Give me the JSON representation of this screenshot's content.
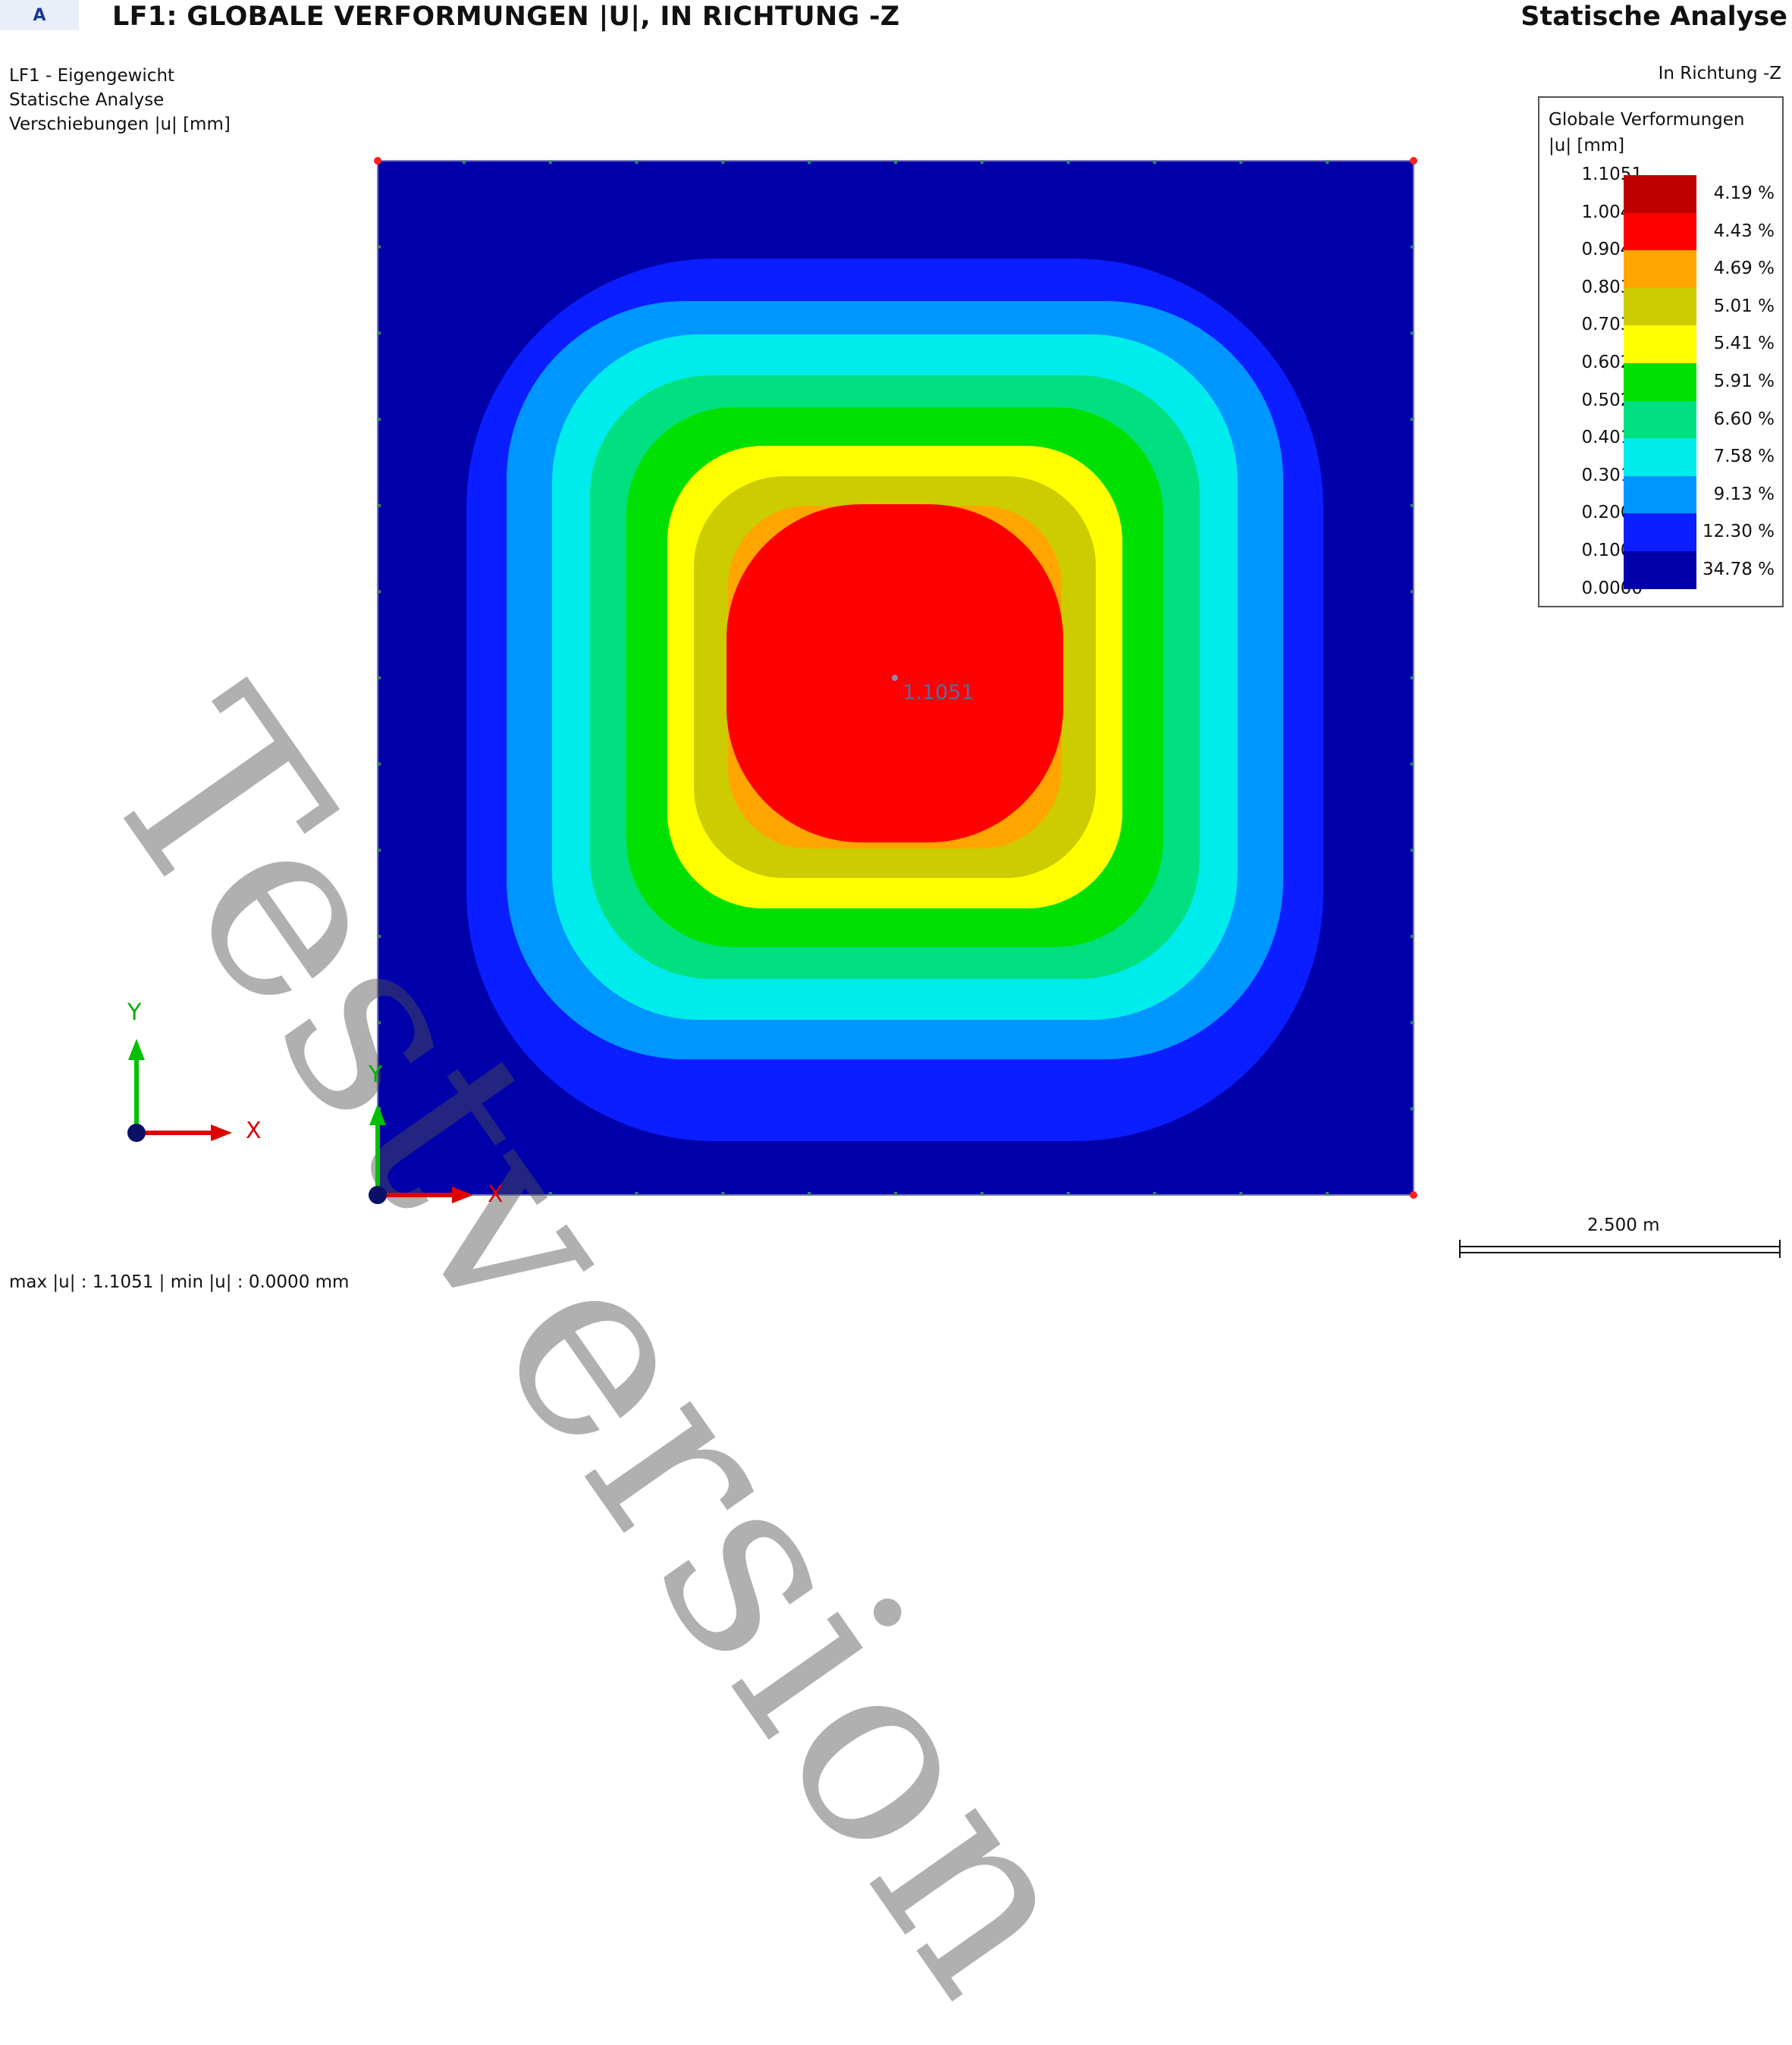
{
  "header": {
    "tag": "A",
    "title": "LF1: GLOBALE VERFORMUNGEN |U|, IN RICHTUNG -Z",
    "analysis_type": "Statische Analyse"
  },
  "info": {
    "load_case": "LF1 - Eigengewicht",
    "analysis": "Statische Analyse",
    "quantity": "Verschiebungen |u| [mm]",
    "direction": "In Richtung -Z"
  },
  "legend": {
    "title_line1": "Globale Verformungen",
    "title_line2": "|u| [mm]",
    "values": [
      "1.1051",
      "1.0047",
      "0.9042",
      "0.8037",
      "0.7033",
      "0.6028",
      "0.5023",
      "0.4019",
      "0.3014",
      "0.2009",
      "0.1005",
      "0.0000"
    ],
    "bands": [
      {
        "color": "#c00000",
        "percent": "4.19 %"
      },
      {
        "color": "#ff0000",
        "percent": "4.43 %"
      },
      {
        "color": "#ffa500",
        "percent": "4.69 %"
      },
      {
        "color": "#cccc00",
        "percent": "5.01 %"
      },
      {
        "color": "#ffff00",
        "percent": "5.41 %"
      },
      {
        "color": "#00e000",
        "percent": "5.91 %"
      },
      {
        "color": "#00e080",
        "percent": "6.60 %"
      },
      {
        "color": "#00ecec",
        "percent": "7.58 %"
      },
      {
        "color": "#0096ff",
        "percent": "9.13 %"
      },
      {
        "color": "#0a1eff",
        "percent": "12.30 %"
      },
      {
        "color": "#0000aa",
        "percent": "34.78 %"
      }
    ]
  },
  "plot": {
    "max_label": "1.1051",
    "watermark": "Testversion"
  },
  "axes": {
    "y": "Y",
    "x": "X"
  },
  "scale": {
    "label": "2.500 m"
  },
  "footer": {
    "summary": "max |u| : 1.1051 | min |u| : 0.0000 mm"
  }
}
